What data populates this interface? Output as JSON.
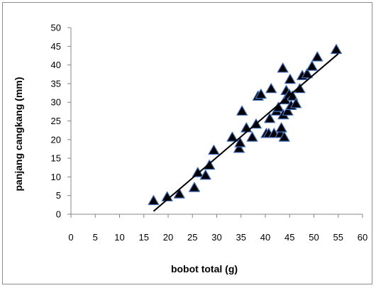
{
  "chart_data": {
    "type": "scatter",
    "title": "",
    "xlabel": "bobot total (g)",
    "ylabel": "panjang cangkang (mm)",
    "xlim": [
      0,
      60
    ],
    "ylim": [
      0,
      50
    ],
    "xticks": [
      "0",
      "5",
      "10",
      "15",
      "20",
      "25",
      "30",
      "35",
      "40",
      "45",
      "50",
      "55",
      "60"
    ],
    "yticks": [
      "0",
      "5",
      "10",
      "15",
      "20",
      "25",
      "30",
      "35",
      "40",
      "45",
      "50"
    ],
    "grid": false,
    "legend": "none",
    "marker": "triangle",
    "marker_fill": "#000000",
    "marker_outline": "#4472c4",
    "trendline": {
      "type": "linear",
      "color": "#000000",
      "x": [
        17,
        55
      ],
      "y": [
        0.8,
        43
      ]
    },
    "series": [
      {
        "points": [
          [
            17,
            3.5
          ],
          [
            19.8,
            4.5
          ],
          [
            22.3,
            5.3
          ],
          [
            25.4,
            7
          ],
          [
            26.1,
            11
          ],
          [
            27.7,
            10.3
          ],
          [
            28.5,
            13
          ],
          [
            29.4,
            17
          ],
          [
            33.2,
            20.5
          ],
          [
            34.6,
            17.5
          ],
          [
            34.8,
            19
          ],
          [
            35.2,
            27.5
          ],
          [
            36.1,
            23
          ],
          [
            37.3,
            20.5
          ],
          [
            38.1,
            24
          ],
          [
            38.5,
            31.5
          ],
          [
            39.1,
            32
          ],
          [
            40.2,
            21.5
          ],
          [
            40.7,
            21.5
          ],
          [
            40.9,
            25.5
          ],
          [
            41.2,
            33.5
          ],
          [
            41.8,
            21.5
          ],
          [
            42.3,
            27.5
          ],
          [
            42.7,
            28.5
          ],
          [
            43.1,
            21.5
          ],
          [
            43.3,
            23
          ],
          [
            43.6,
            39
          ],
          [
            43.7,
            26.5
          ],
          [
            43.9,
            20.5
          ],
          [
            44.1,
            30.5
          ],
          [
            44.3,
            33
          ],
          [
            44.6,
            27.5
          ],
          [
            44.9,
            32
          ],
          [
            45.1,
            36
          ],
          [
            45.3,
            29
          ],
          [
            45.6,
            31.5
          ],
          [
            46.3,
            29.5
          ],
          [
            47.1,
            33.5
          ],
          [
            47.6,
            37
          ],
          [
            48.6,
            37.5
          ],
          [
            49.6,
            39.5
          ],
          [
            50.7,
            42
          ],
          [
            54.6,
            44
          ]
        ]
      }
    ]
  }
}
